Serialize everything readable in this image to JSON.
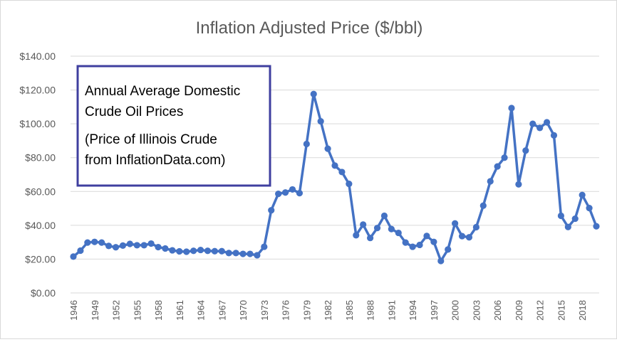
{
  "chart_data": {
    "type": "line",
    "title": "Inflation Adjusted Price ($/bbl)",
    "xlabel": "",
    "ylabel": "",
    "ylim": [
      0,
      140
    ],
    "yticks": [
      "$0.00",
      "$20.00",
      "$40.00",
      "$60.00",
      "$80.00",
      "$100.00",
      "$120.00",
      "$140.00"
    ],
    "xticks": [
      "1946",
      "1949",
      "1952",
      "1955",
      "1958",
      "1961",
      "1964",
      "1967",
      "1970",
      "1973",
      "1976",
      "1979",
      "1982",
      "1985",
      "1988",
      "1991",
      "1994",
      "1997",
      "2000",
      "2003",
      "2006",
      "2009",
      "2012",
      "2015",
      "2018"
    ],
    "x_range": [
      1946,
      2020
    ],
    "grid": true,
    "legend": "none",
    "line_color": "#4472c4",
    "x": [
      1946,
      1947,
      1948,
      1949,
      1950,
      1951,
      1952,
      1953,
      1954,
      1955,
      1956,
      1957,
      1958,
      1959,
      1960,
      1961,
      1962,
      1963,
      1964,
      1965,
      1966,
      1967,
      1968,
      1969,
      1970,
      1971,
      1972,
      1973,
      1974,
      1975,
      1976,
      1977,
      1978,
      1979,
      1980,
      1981,
      1982,
      1983,
      1984,
      1985,
      1986,
      1987,
      1988,
      1989,
      1990,
      1991,
      1992,
      1993,
      1994,
      1995,
      1996,
      1997,
      1998,
      1999,
      2000,
      2001,
      2002,
      2003,
      2004,
      2005,
      2006,
      2007,
      2008,
      2009,
      2010,
      2011,
      2012,
      2013,
      2014,
      2015,
      2016,
      2017,
      2018,
      2019,
      2020
    ],
    "series": [
      {
        "values": [
          21.5,
          25,
          29.8,
          30.2,
          29.8,
          27.8,
          27,
          28,
          29,
          28.2,
          28.2,
          29.2,
          27.1,
          26.3,
          25.2,
          24.6,
          24.4,
          24.9,
          25.4,
          24.9,
          24.7,
          24.7,
          23.6,
          23.6,
          23.1,
          23.1,
          22.3,
          27.3,
          48.9,
          58.6,
          59.4,
          61.2,
          59,
          88.1,
          117.6,
          101.5,
          85.3,
          75.3,
          71.5,
          64.5,
          34.1,
          40.4,
          32.5,
          38.4,
          45.6,
          37.8,
          35.5,
          29.8,
          27.3,
          28.4,
          33.7,
          30.2,
          18.9,
          25.7,
          41.1,
          33.6,
          32.9,
          38.9,
          51.6,
          66,
          74.8,
          80,
          109.3,
          64.2,
          84.2,
          100,
          97.6,
          100.9,
          93.2,
          45.6,
          39,
          43.9,
          57.9,
          50.2,
          39.4
        ]
      }
    ]
  },
  "annotation": {
    "lines": [
      "Annual Average Domestic",
      "Crude Oil  Prices",
      "(Price of Illinois Crude",
      "from InflationData.com)"
    ],
    "border_color": "#3f3f9f"
  }
}
